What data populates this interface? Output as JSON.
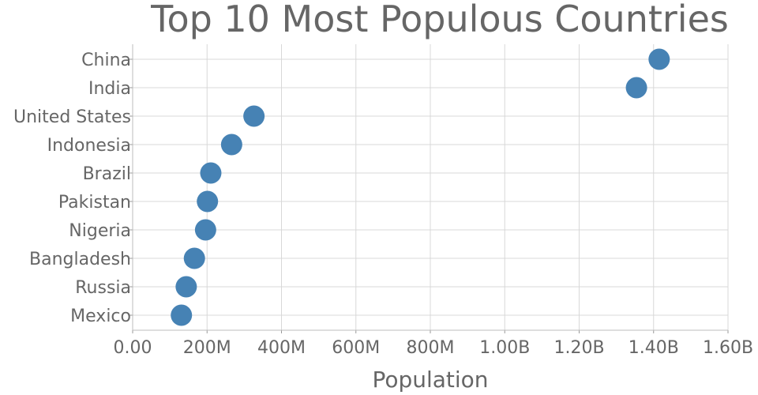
{
  "chart_data": {
    "type": "scatter",
    "title": "Top 10 Most Populous Countries",
    "xlabel": "Population",
    "ylabel": "",
    "xlim": [
      0,
      1600000000
    ],
    "x_ticks": [
      {
        "value": 0,
        "label": "0.00"
      },
      {
        "value": 200000000,
        "label": "200M"
      },
      {
        "value": 400000000,
        "label": "400M"
      },
      {
        "value": 600000000,
        "label": "600M"
      },
      {
        "value": 800000000,
        "label": "800M"
      },
      {
        "value": 1000000000,
        "label": "1.00B"
      },
      {
        "value": 1200000000,
        "label": "1.20B"
      },
      {
        "value": 1400000000,
        "label": "1.40B"
      },
      {
        "value": 1600000000,
        "label": "1.60B"
      }
    ],
    "categories": [
      "China",
      "India",
      "United States",
      "Indonesia",
      "Brazil",
      "Pakistan",
      "Nigeria",
      "Bangladesh",
      "Russia",
      "Mexico"
    ],
    "values": [
      1415000000,
      1354000000,
      326000000,
      266000000,
      210000000,
      201000000,
      196000000,
      166000000,
      144000000,
      131000000
    ],
    "grid": true,
    "marker_color": "#4682b4"
  }
}
